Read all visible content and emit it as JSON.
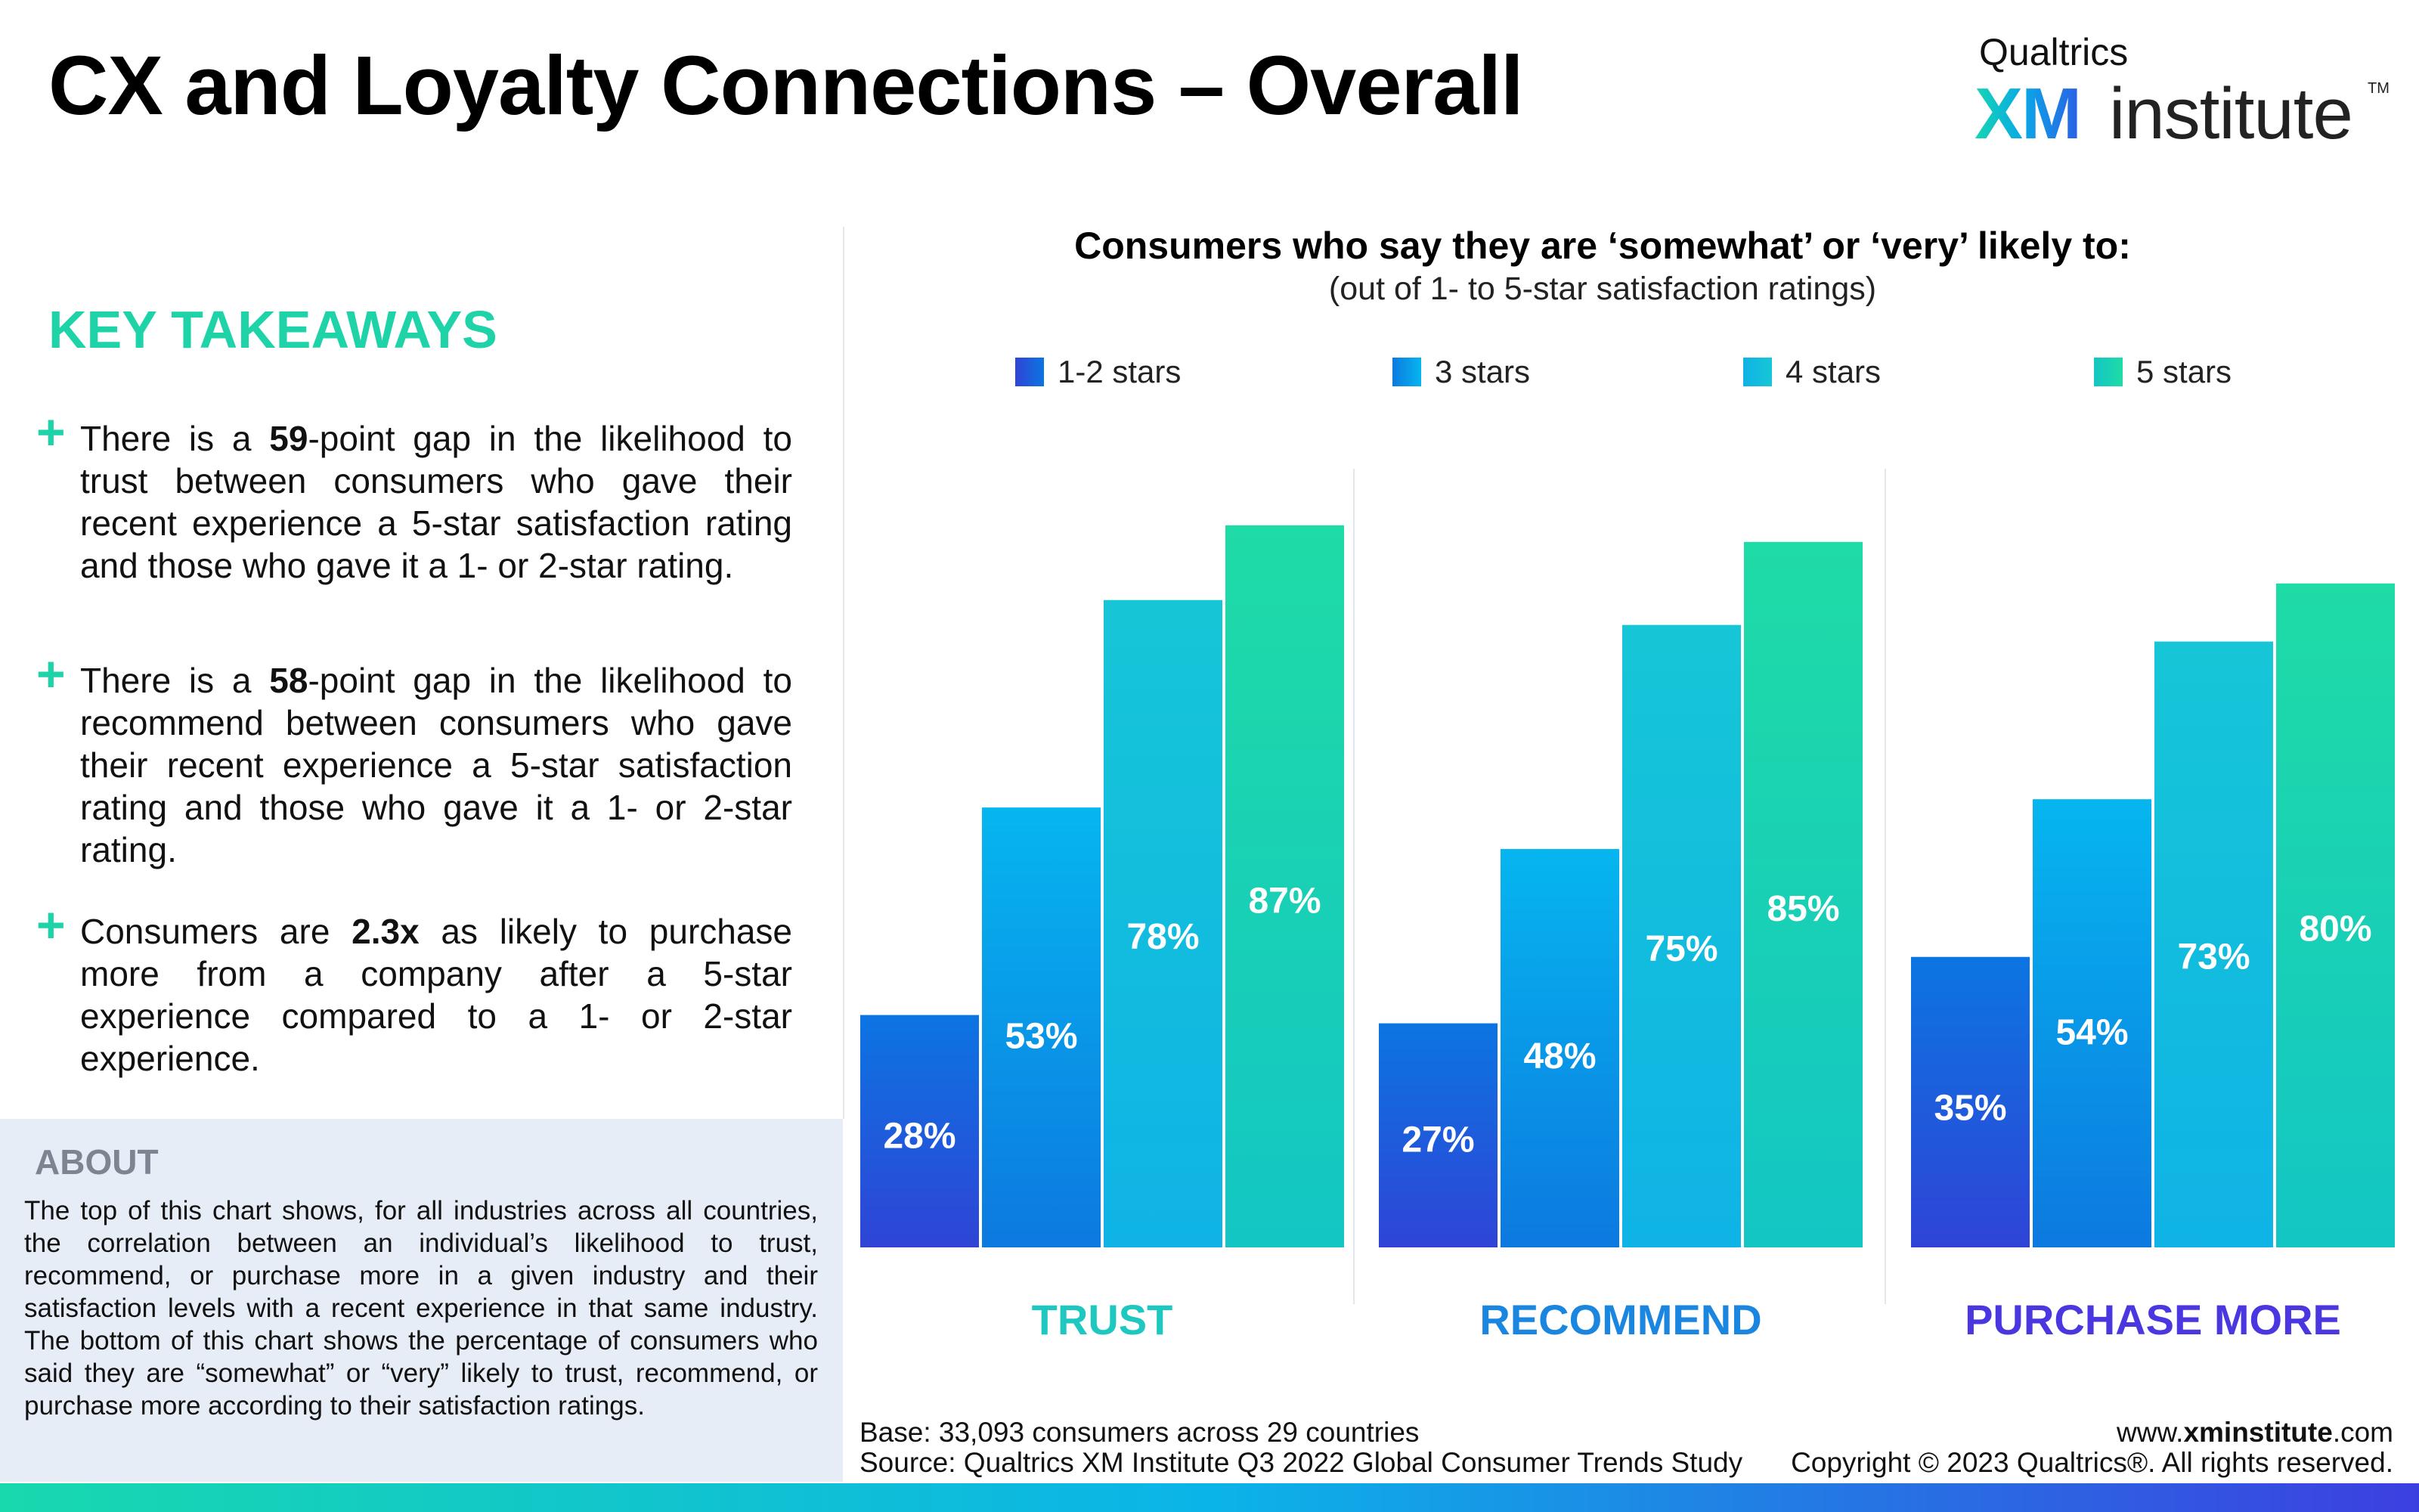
{
  "title": "CX and Loyalty Connections – Overall",
  "logo": {
    "brand": "Qualtrics",
    "xm": "XM",
    "product": "institute",
    "tm": "TM"
  },
  "takeaways": {
    "heading": "KEY TAKEAWAYS",
    "items": [
      {
        "before": "There is a ",
        "bold": "59",
        "after": "-point gap in the likelihood to trust between consumers who gave their recent experience a 5-star satisfaction rating and those who gave it a 1- or 2-star rating."
      },
      {
        "before": "There is a ",
        "bold": "58",
        "after": "-point gap in the likelihood to recommend between consumers who gave their recent experience a 5-star satisfaction rating and those who gave it a 1- or 2-star rating."
      },
      {
        "before": "Consumers are ",
        "bold": "2.3x",
        "after": " as likely to purchase more from a company after a 5-star experience compared to a 1- or 2-star experience."
      }
    ]
  },
  "about": {
    "heading": "ABOUT",
    "text": "The top of this chart shows, for all industries across all countries, the correlation between an individual’s likelihood to trust, recommend, or purchase more in a given industry and their satisfaction levels with a recent experience in that same industry. The bottom of this chart shows the percentage of consumers who said they are “somewhat” or “very” likely to trust, recommend, or purchase more according to their satisfaction ratings."
  },
  "chart_data": {
    "type": "bar",
    "title": "Consumers who say they are ‘somewhat’ or ‘very’ likely to:",
    "subtitle": "(out of 1- to 5-star satisfaction ratings)",
    "categories": [
      "TRUST",
      "RECOMMEND",
      "PURCHASE MORE"
    ],
    "category_colors": [
      "#1ec8c0",
      "#1a86e0",
      "#4a37e0"
    ],
    "series": [
      {
        "name": "1-2 stars",
        "values": [
          28,
          27,
          35
        ],
        "colors": [
          "#2f44d6",
          "#0c75e2"
        ]
      },
      {
        "name": "3 stars",
        "values": [
          53,
          48,
          54
        ],
        "colors": [
          "#0c79e0",
          "#06b6ef"
        ]
      },
      {
        "name": "4 stars",
        "values": [
          78,
          75,
          73
        ],
        "colors": [
          "#0fb3e6",
          "#16c6d6"
        ]
      },
      {
        "name": "5 stars",
        "values": [
          87,
          85,
          80
        ],
        "colors": [
          "#13c6c4",
          "#1fdba6"
        ]
      }
    ],
    "value_suffix": "%",
    "ylim": [
      0,
      92
    ],
    "legend_position": "top",
    "grid": false
  },
  "footer": {
    "base": "Base: 33,093 consumers across 29 countries",
    "source": "Source: Qualtrics XM Institute Q3 2022 Global Consumer Trends Study",
    "url_prefix": "www.",
    "url_bold": "xminstitute",
    "url_suffix": ".com",
    "copyright": "Copyright © 2023 Qualtrics®. All rights reserved."
  }
}
